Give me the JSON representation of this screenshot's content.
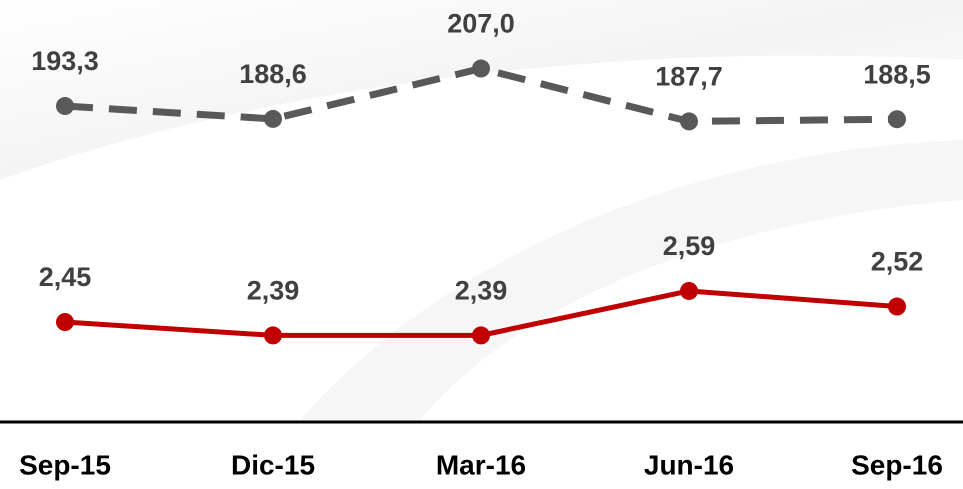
{
  "chart_data": {
    "type": "line",
    "categories": [
      "Sep-15",
      "Dic-15",
      "Mar-16",
      "Jun-16",
      "Sep-16"
    ],
    "series": [
      {
        "color": "#595959",
        "dashed": true,
        "axis": "y2",
        "values": [
          193.3,
          188.6,
          207.0,
          187.7,
          188.5
        ],
        "value_labels": [
          "193,3",
          "188,6",
          "207,0",
          "187,7",
          "188,5"
        ]
      },
      {
        "color": "#c00000",
        "dashed": false,
        "values": [
          2.45,
          2.39,
          2.39,
          2.59,
          2.52
        ],
        "value_labels": [
          "2,45",
          "2,39",
          "2,39",
          "2,59",
          "2,52"
        ]
      }
    ],
    "ylim": [
      2.0,
      3.9
    ],
    "y2lim": [
      78,
      232
    ]
  }
}
